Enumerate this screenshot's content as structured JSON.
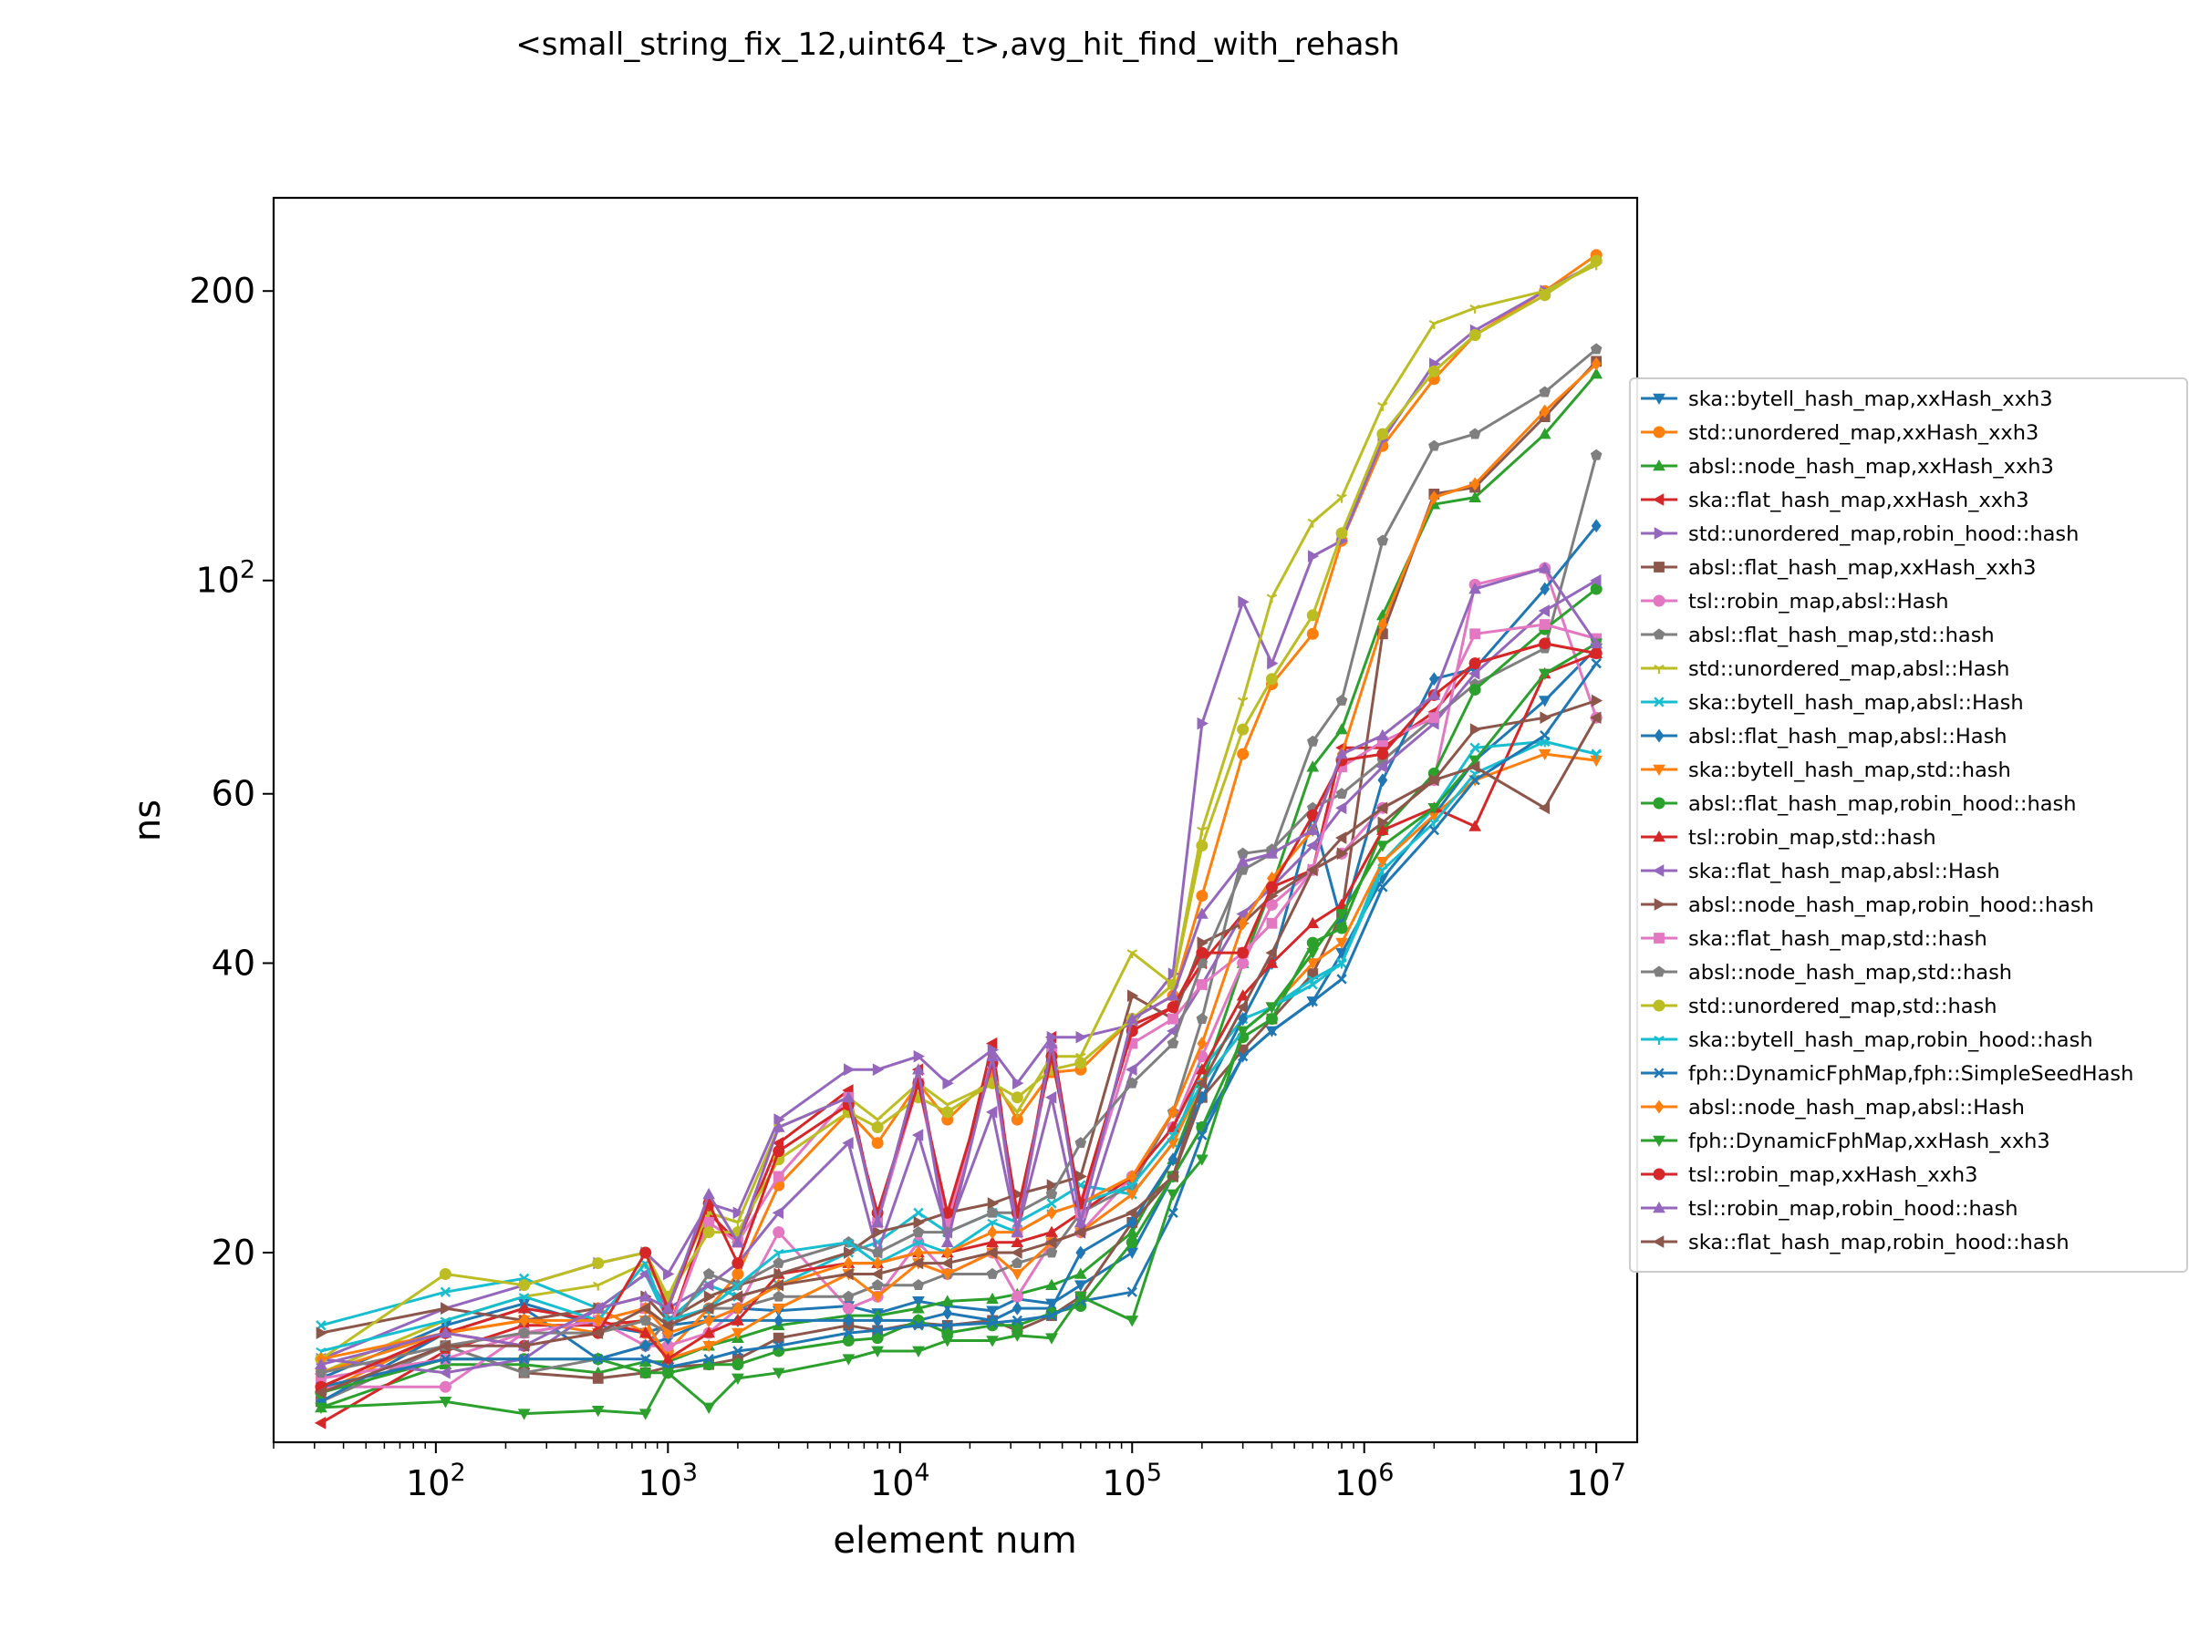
{
  "chart_data": {
    "type": "line",
    "title": "<small_string_fix_12,uint64_t>,avg_hit_find_with_rehash",
    "xlabel": "element num",
    "ylabel": "ns",
    "xscale": "log",
    "yscale": "log",
    "xlim": [
      20,
      15000000
    ],
    "ylim": [
      12.7,
      250
    ],
    "legend_position": "right",
    "x_ticks": [
      {
        "value": 100,
        "base": "10",
        "exp": "2"
      },
      {
        "value": 1000,
        "base": "10",
        "exp": "3"
      },
      {
        "value": 10000,
        "base": "10",
        "exp": "4"
      },
      {
        "value": 100000,
        "base": "10",
        "exp": "5"
      },
      {
        "value": 1000000,
        "base": "10",
        "exp": "6"
      },
      {
        "value": 10000000,
        "base": "10",
        "exp": "7"
      }
    ],
    "y_ticks": [
      {
        "value": 20,
        "base": "20",
        "exp": ""
      },
      {
        "value": 40,
        "base": "40",
        "exp": ""
      },
      {
        "value": 60,
        "base": "60",
        "exp": ""
      },
      {
        "value": 100,
        "base": "10",
        "exp": "2"
      },
      {
        "value": 200,
        "base": "200",
        "exp": ""
      }
    ],
    "x": [
      32,
      110,
      240,
      500,
      800,
      1000,
      1500,
      2000,
      3000,
      6000,
      8000,
      12000,
      16000,
      25000,
      32000,
      45000,
      60000,
      100000,
      150000,
      200000,
      300000,
      400000,
      600000,
      800000,
      1200000,
      2000000,
      3000000,
      6000000,
      10000000
    ],
    "series": [
      {
        "name": "ska::bytell_hash_map,xxHash_xxh3",
        "color": "#1f77b4",
        "marker": "triangle_down",
        "values": [
          14.8,
          16.8,
          17.7,
          16.8,
          16.5,
          16.8,
          17.0,
          17.5,
          17.4,
          17.6,
          17.3,
          17.8,
          17.6,
          17.4,
          17.9,
          17.7,
          18.5,
          20.0,
          24.0,
          27.0,
          32.0,
          34.0,
          36.5,
          41.0,
          49.0,
          57.0,
          65.0,
          75.0,
          85.0
        ]
      },
      {
        "name": "std::unordered_map,xxHash_xxh3",
        "color": "#ff7f0e",
        "marker": "circle",
        "values": [
          14.3,
          16.5,
          17.0,
          17.5,
          16.5,
          15.8,
          17.5,
          19.0,
          23.5,
          28.0,
          26.0,
          30.0,
          27.5,
          30.5,
          27.5,
          30.8,
          31.0,
          35.0,
          37.0,
          47.0,
          66.0,
          78.0,
          88.0,
          110.0,
          138.0,
          162.0,
          180.0,
          200.0,
          218.0
        ]
      },
      {
        "name": "absl::node_hash_map,xxHash_xxh3",
        "color": "#2ca02c",
        "marker": "triangle_up",
        "values": [
          13.8,
          15.3,
          15.3,
          15.0,
          15.4,
          15.4,
          16.0,
          16.3,
          16.8,
          17.2,
          17.2,
          17.5,
          17.8,
          17.9,
          18.1,
          18.5,
          19.0,
          21.0,
          25.0,
          30.0,
          40.0,
          48.0,
          64.0,
          70.0,
          92.0,
          120.0,
          122.0,
          142.0,
          164.0
        ]
      },
      {
        "name": "ska::flat_hash_map,xxHash_xxh3",
        "color": "#d62728",
        "marker": "triangle_left",
        "values": [
          13.3,
          15.8,
          16.8,
          16.8,
          17.0,
          16.5,
          22.0,
          20.5,
          26.0,
          29.5,
          21.5,
          31.0,
          21.0,
          33.0,
          21.0,
          33.5,
          22.0,
          34.5,
          36.0,
          40.0,
          45.0,
          48.0,
          50.0,
          67.0,
          67.0,
          73.0,
          82.0,
          86.0,
          84.0
        ]
      },
      {
        "name": "std::unordered_map,robin_hood::hash",
        "color": "#9467bd",
        "marker": "triangle_right",
        "values": [
          15.5,
          17.5,
          18.5,
          19.5,
          20.0,
          19.0,
          22.5,
          22.0,
          27.5,
          31.0,
          31.0,
          32.0,
          30.0,
          32.5,
          30.0,
          33.5,
          33.5,
          34.5,
          39.0,
          71.0,
          95.0,
          82.0,
          106.0,
          110.0,
          140.0,
          168.0,
          182.0,
          200.0,
          214.0
        ]
      },
      {
        "name": "absl::flat_hash_map,xxHash_xxh3",
        "color": "#8c564b",
        "marker": "square",
        "values": [
          14.0,
          16.0,
          15.0,
          14.8,
          15.0,
          15.2,
          15.3,
          15.5,
          16.3,
          16.8,
          16.6,
          16.9,
          16.8,
          17.0,
          16.6,
          17.2,
          18.0,
          21.5,
          24.0,
          29.0,
          32.5,
          35.0,
          39.0,
          45.0,
          88.0,
          123.0,
          125.0,
          148.0,
          169.0
        ]
      },
      {
        "name": "tsl::robin_map,absl::Hash",
        "color": "#e377c2",
        "marker": "circle",
        "values": [
          14.5,
          14.5,
          16.5,
          17.0,
          16.0,
          16.0,
          16.5,
          17.5,
          21.0,
          17.5,
          18.0,
          20.5,
          19.0,
          20.0,
          18.0,
          20.5,
          21.0,
          24.0,
          27.0,
          32.0,
          40.0,
          46.0,
          50.0,
          52.0,
          58.0,
          62.0,
          99.0,
          103.0,
          72.0
        ]
      },
      {
        "name": "absl::flat_hash_map,std::hash",
        "color": "#7f7f7f",
        "marker": "pentagon",
        "values": [
          14.0,
          16.0,
          15.0,
          15.5,
          16.0,
          17.0,
          17.5,
          17.5,
          18.0,
          18.0,
          18.5,
          18.5,
          19.0,
          19.0,
          19.5,
          20.0,
          22.0,
          23.5,
          28.0,
          35.0,
          52.0,
          52.5,
          58.0,
          60.0,
          65.0,
          72.0,
          78.0,
          85.0,
          135.0
        ]
      },
      {
        "name": "std::unordered_map,absl::Hash",
        "color": "#bcbd22",
        "marker": "tri_down",
        "values": [
          15.0,
          17.0,
          18.0,
          18.5,
          19.5,
          18.0,
          22.0,
          21.5,
          27.0,
          29.0,
          27.5,
          30.0,
          28.5,
          30.0,
          28.0,
          32.0,
          32.0,
          41.0,
          38.0,
          55.0,
          75.0,
          96.0,
          115.0,
          122.0,
          152.0,
          185.0,
          192.0,
          200.0,
          213.0
        ]
      },
      {
        "name": "ska::bytell_hash_map,absl::Hash",
        "color": "#17becf",
        "marker": "x",
        "values": [
          16.8,
          18.2,
          18.8,
          17.5,
          19.0,
          17.0,
          18.5,
          18.0,
          18.5,
          20.0,
          20.5,
          22.0,
          21.0,
          22.0,
          21.5,
          22.5,
          23.5,
          23.0,
          26.0,
          31.0,
          35.0,
          36.0,
          38.0,
          40.0,
          51.0,
          58.0,
          67.0,
          68.0,
          66.0
        ]
      },
      {
        "name": "absl::flat_hash_map,absl::Hash",
        "color": "#1f77b4",
        "marker": "diamond",
        "values": [
          14.0,
          16.5,
          17.5,
          15.5,
          16.0,
          16.3,
          17.0,
          17.0,
          17.0,
          17.0,
          17.0,
          17.0,
          17.3,
          17.0,
          17.5,
          17.5,
          20.0,
          21.5,
          25.0,
          29.0,
          35.0,
          40.0,
          57.0,
          44.0,
          62.0,
          79.0,
          81.0,
          98.0,
          114.0
        ]
      },
      {
        "name": "ska::bytell_hash_map,std::hash",
        "color": "#ff7f0e",
        "marker": "triangle_down",
        "values": [
          15.0,
          16.5,
          17.0,
          16.5,
          17.0,
          15.5,
          16.0,
          16.5,
          17.5,
          19.0,
          18.0,
          19.5,
          19.0,
          20.0,
          19.0,
          20.5,
          21.0,
          23.0,
          26.0,
          30.0,
          34.0,
          36.0,
          40.0,
          42.0,
          51.0,
          57.0,
          62.0,
          66.0,
          65.0
        ]
      },
      {
        "name": "absl::flat_hash_map,robin_hood::hash",
        "color": "#2ca02c",
        "marker": "circle",
        "values": [
          14.3,
          15.5,
          15.5,
          15.5,
          15.0,
          15.0,
          15.3,
          15.3,
          15.8,
          16.2,
          16.3,
          17.0,
          16.5,
          16.8,
          16.8,
          17.3,
          17.6,
          20.5,
          24.0,
          27.0,
          33.5,
          35.0,
          42.0,
          43.5,
          55.0,
          63.0,
          77.0,
          89.0,
          98.0
        ]
      },
      {
        "name": "tsl::robin_map,std::hash",
        "color": "#d62728",
        "marker": "triangle_up",
        "values": [
          14.5,
          16.5,
          17.5,
          17.0,
          16.5,
          15.5,
          16.5,
          17.0,
          19.0,
          19.5,
          19.5,
          20.0,
          20.0,
          20.5,
          20.5,
          21.0,
          22.0,
          24.0,
          27.0,
          31.0,
          37.0,
          40.0,
          44.0,
          46.0,
          55.0,
          58.0,
          55.5,
          80.0,
          84.0
        ]
      },
      {
        "name": "ska::flat_hash_map,absl::Hash",
        "color": "#9467bd",
        "marker": "triangle_left",
        "values": [
          15.5,
          15.0,
          15.5,
          17.5,
          19.0,
          17.5,
          18.5,
          19.5,
          22.0,
          26.0,
          20.0,
          26.5,
          21.0,
          28.0,
          21.0,
          29.0,
          21.0,
          31.0,
          34.0,
          38.0,
          45.0,
          48.0,
          53.0,
          58.0,
          64.0,
          71.0,
          80.0,
          93.0,
          100.0
        ]
      },
      {
        "name": "absl::node_hash_map,robin_hood::hash",
        "color": "#8c564b",
        "marker": "triangle_right",
        "values": [
          16.5,
          17.5,
          17.0,
          17.5,
          18.0,
          17.0,
          18.0,
          18.5,
          19.0,
          20.0,
          21.0,
          21.5,
          22.0,
          22.5,
          23.0,
          23.5,
          24.0,
          37.0,
          35.0,
          42.0,
          44.0,
          47.0,
          50.0,
          52.0,
          56.0,
          62.0,
          70.0,
          72.0,
          75.0
        ]
      },
      {
        "name": "ska::flat_hash_map,std::hash",
        "color": "#e377c2",
        "marker": "square",
        "values": [
          14.8,
          15.5,
          16.5,
          17.0,
          17.5,
          16.5,
          21.5,
          20.5,
          24.0,
          29.0,
          21.5,
          30.0,
          21.5,
          31.5,
          21.0,
          32.5,
          22.0,
          33.0,
          35.0,
          38.0,
          41.0,
          44.0,
          50.0,
          64.0,
          68.0,
          72.0,
          88.0,
          90.0,
          87.0
        ]
      },
      {
        "name": "absl::node_hash_map,std::hash",
        "color": "#7f7f7f",
        "marker": "pentagon",
        "values": [
          15.0,
          16.0,
          16.5,
          16.5,
          17.0,
          16.5,
          19.0,
          18.5,
          19.5,
          20.5,
          20.0,
          21.0,
          21.0,
          22.0,
          22.0,
          23.0,
          26.0,
          30.0,
          33.0,
          40.0,
          50.0,
          52.0,
          68.0,
          75.0,
          110.0,
          138.0,
          142.0,
          157.0,
          174.0
        ]
      },
      {
        "name": "std::unordered_map,std::hash",
        "color": "#bcbd22",
        "marker": "circle",
        "values": [
          15.5,
          19.0,
          18.5,
          19.5,
          20.0,
          18.0,
          21.0,
          21.0,
          25.0,
          28.0,
          27.0,
          29.0,
          28.0,
          30.0,
          29.0,
          31.0,
          31.5,
          35.0,
          38.0,
          53.0,
          70.0,
          79.0,
          92.0,
          112.0,
          142.0,
          165.0,
          180.0,
          198.0,
          215.0
        ]
      },
      {
        "name": "ska::bytell_hash_map,robin_hood::hash",
        "color": "#17becf",
        "marker": "tri_down",
        "values": [
          15.8,
          17.0,
          18.0,
          17.0,
          19.5,
          17.0,
          17.5,
          18.5,
          20.0,
          20.5,
          19.5,
          20.5,
          20.0,
          21.5,
          21.0,
          22.0,
          22.5,
          23.5,
          26.5,
          30.0,
          34.0,
          36.0,
          38.5,
          40.0,
          50.0,
          56.0,
          63.0,
          68.0,
          66.0
        ]
      },
      {
        "name": "fph::DynamicFphMap,fph::SimpleSeedHash",
        "color": "#1f77b4",
        "marker": "x",
        "values": [
          14.5,
          15.5,
          15.5,
          15.5,
          15.5,
          15.2,
          15.5,
          15.8,
          16.0,
          16.5,
          16.6,
          16.8,
          16.8,
          16.9,
          17.0,
          17.2,
          17.8,
          18.2,
          22.0,
          26.5,
          32.0,
          34.0,
          36.5,
          38.5,
          48.0,
          55.0,
          62.0,
          69.0,
          82.0
        ]
      },
      {
        "name": "absl::node_hash_map,absl::Hash",
        "color": "#ff7f0e",
        "marker": "diamond",
        "values": [
          15.5,
          16.5,
          17.0,
          17.0,
          17.5,
          16.5,
          17.0,
          17.5,
          18.5,
          19.5,
          19.5,
          20.0,
          20.0,
          21.0,
          21.0,
          22.0,
          22.5,
          24.0,
          28.0,
          33.0,
          44.0,
          49.0,
          55.0,
          66.0,
          90.0,
          122.0,
          126.0,
          150.0,
          168.0
        ]
      },
      {
        "name": "fph::DynamicFphMap,xxHash_xxh3",
        "color": "#2ca02c",
        "marker": "triangle_down",
        "values": [
          13.8,
          14.0,
          13.6,
          13.7,
          13.6,
          15.0,
          13.8,
          14.8,
          15.0,
          15.5,
          15.8,
          15.8,
          16.2,
          16.2,
          16.4,
          16.3,
          18.0,
          17.0,
          23.0,
          25.0,
          34.0,
          36.0,
          41.0,
          45.0,
          53.0,
          58.0,
          65.0,
          80.0,
          86.0
        ]
      },
      {
        "name": "tsl::robin_map,xxHash_xxh3",
        "color": "#d62728",
        "marker": "circle",
        "values": [
          14.5,
          16.5,
          16.0,
          16.5,
          20.0,
          17.5,
          22.5,
          19.5,
          25.5,
          28.5,
          22.0,
          30.0,
          22.0,
          31.5,
          22.0,
          32.0,
          22.5,
          34.0,
          36.0,
          41.0,
          41.0,
          48.0,
          57.0,
          65.0,
          66.0,
          76.0,
          82.0,
          86.0,
          84.0
        ]
      },
      {
        "name": "tsl::robin_map,robin_hood::hash",
        "color": "#9467bd",
        "marker": "triangle_up",
        "values": [
          15.3,
          16.5,
          16.0,
          17.5,
          18.0,
          17.5,
          23.0,
          20.5,
          27.0,
          29.0,
          21.5,
          31.0,
          20.5,
          32.0,
          21.0,
          33.0,
          21.5,
          35.0,
          37.0,
          45.0,
          51.0,
          52.0,
          55.0,
          66.0,
          69.0,
          76.0,
          98.0,
          103.0,
          86.0
        ]
      },
      {
        "name": "ska::flat_hash_map,robin_hood::hash",
        "color": "#8c564b",
        "marker": "triangle_left",
        "values": [
          14.3,
          16.0,
          16.0,
          16.5,
          17.5,
          16.8,
          17.5,
          18.0,
          18.5,
          19.0,
          19.0,
          19.5,
          19.5,
          20.0,
          20.0,
          20.5,
          21.0,
          22.0,
          24.0,
          30.0,
          36.0,
          41.0,
          50.0,
          54.0,
          58.0,
          62.0,
          64.0,
          58.0,
          72.0
        ]
      }
    ]
  }
}
